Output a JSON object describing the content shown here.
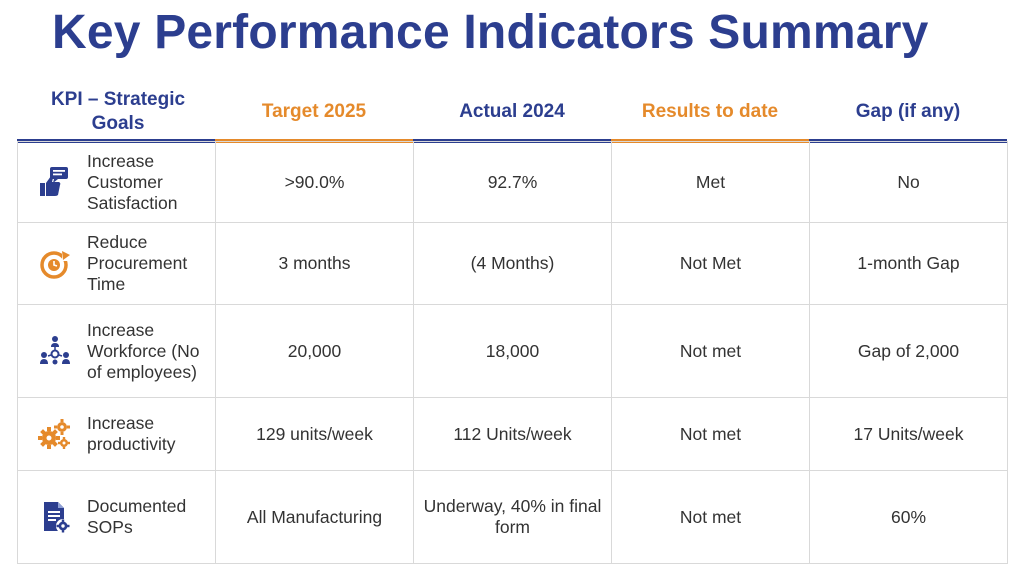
{
  "title": "Key Performance Indicators Summary",
  "colors": {
    "navy": "#2c3e8f",
    "orange": "#e58a2b",
    "text": "#333333",
    "grid": "#d9d9d9"
  },
  "headers": [
    "KPI – Strategic Goals",
    "Target 2025",
    "Actual 2024",
    "Results  to date",
    "Gap (if any)"
  ],
  "rows": [
    {
      "icon": "thumbs-up-chat-icon",
      "goal": "Increase Customer Satisfaction",
      "target": ">90.0%",
      "actual": "92.7%",
      "result": "Met",
      "gap": "No"
    },
    {
      "icon": "clock-refresh-icon",
      "goal": "Reduce Procurement Time",
      "target": "3 months",
      "actual": "(4 Months)",
      "result": "Not Met",
      "gap": "1-month Gap"
    },
    {
      "icon": "team-network-icon",
      "goal": "Increase Workforce (No of employees)",
      "target": "20,000",
      "actual": "18,000",
      "result": "Not met",
      "gap": "Gap of 2,000"
    },
    {
      "icon": "gears-icon",
      "goal": "Increase productivity",
      "target": "129 units/week",
      "actual": "112 Units/week",
      "result": "Not met",
      "gap": "17 Units/week"
    },
    {
      "icon": "document-gear-icon",
      "goal": "Documented SOPs",
      "target": "All Manufacturing",
      "actual": "Underway, 40% in final form",
      "result": "Not met",
      "gap": "60%"
    }
  ]
}
